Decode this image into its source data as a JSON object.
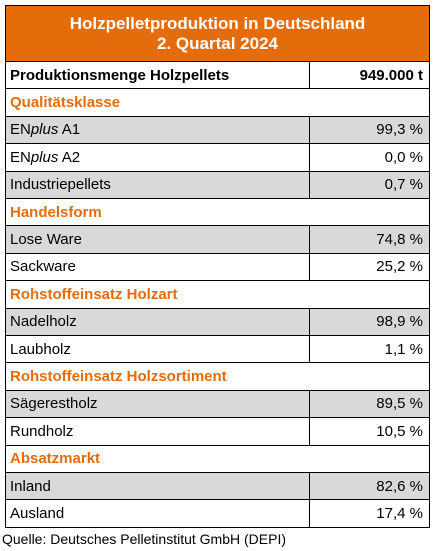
{
  "header": {
    "title_lines": [
      "Holzpelletproduktion in Deutschland",
      "2. Quartal 2024"
    ]
  },
  "total": {
    "label": "Produktionsmenge Holzpellets",
    "value": "949.000 t"
  },
  "sections": [
    {
      "title": "Qualitätsklasse",
      "rows": [
        {
          "label_parts": [
            {
              "text": "EN"
            },
            {
              "text": "plus",
              "italic": true
            },
            {
              "text": " A1"
            }
          ],
          "value": "99,3 %"
        },
        {
          "label_parts": [
            {
              "text": "EN"
            },
            {
              "text": "plus",
              "italic": true
            },
            {
              "text": " A2"
            }
          ],
          "value": "0,0 %"
        },
        {
          "label_parts": [
            {
              "text": "Industriepellets"
            }
          ],
          "value": "0,7 %"
        }
      ]
    },
    {
      "title": "Handelsform",
      "rows": [
        {
          "label_parts": [
            {
              "text": "Lose Ware"
            }
          ],
          "value": "74,8 %"
        },
        {
          "label_parts": [
            {
              "text": "Sackware"
            }
          ],
          "value": "25,2 %"
        }
      ]
    },
    {
      "title": "Rohstoffeinsatz Holzart",
      "rows": [
        {
          "label_parts": [
            {
              "text": "Nadelholz"
            }
          ],
          "value": "98,9 %"
        },
        {
          "label_parts": [
            {
              "text": "Laubholz"
            }
          ],
          "value": "1,1 %"
        }
      ]
    },
    {
      "title": "Rohstoffeinsatz Holzsortiment",
      "rows": [
        {
          "label_parts": [
            {
              "text": "Sägerestholz"
            }
          ],
          "value": "89,5 %"
        },
        {
          "label_parts": [
            {
              "text": "Rundholz"
            }
          ],
          "value": "10,5 %"
        }
      ]
    },
    {
      "title": "Absatzmarkt",
      "rows": [
        {
          "label_parts": [
            {
              "text": "Inland"
            }
          ],
          "value": "82,6 %"
        },
        {
          "label_parts": [
            {
              "text": "Ausland"
            }
          ],
          "value": "17,4 %"
        }
      ]
    }
  ],
  "source": "Quelle: Deutsches Pelletinstitut GmbH (DEPI)"
}
